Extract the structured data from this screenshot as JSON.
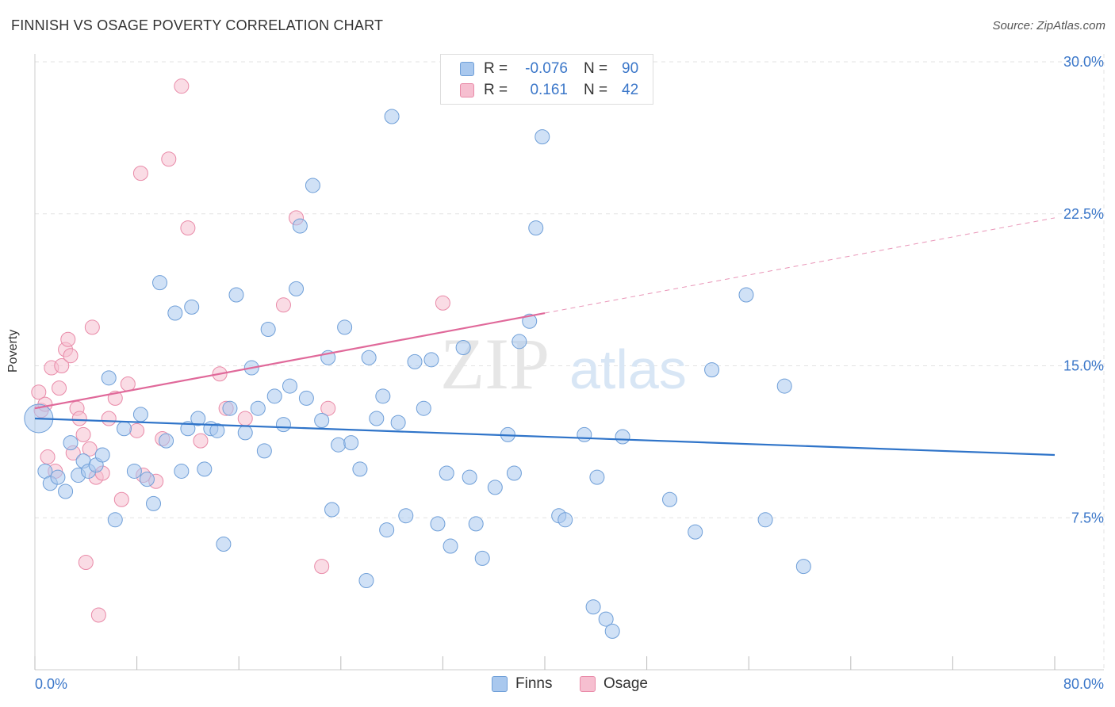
{
  "title": "FINNISH VS OSAGE POVERTY CORRELATION CHART",
  "source": "Source: ZipAtlas.com",
  "watermark": {
    "zip": "ZIP",
    "atlas": "atlas"
  },
  "colors": {
    "finns_fill": "#a9c8ee",
    "finns_stroke": "#6f9fd8",
    "finns_line": "#2f74c9",
    "osage_fill": "#f6bfd0",
    "osage_stroke": "#e98aa8",
    "osage_line": "#e0699a",
    "tick_text": "#3b77c9",
    "grid": "#e3e3e3"
  },
  "legend": {
    "rows": [
      {
        "r_label": "R =",
        "r_value": "-0.076",
        "n_label": "N =",
        "n_value": "90"
      },
      {
        "r_label": "R =",
        "r_value": "0.161",
        "n_label": "N =",
        "n_value": "42"
      }
    ]
  },
  "bottom_legend": [
    "Finns",
    "Osage"
  ],
  "chart_data": {
    "type": "scatter",
    "xlabel": "",
    "ylabel": "Poverty",
    "xlim": [
      0,
      80
    ],
    "ylim": [
      0,
      30
    ],
    "x_tick_labels": [
      "0.0%",
      "80.0%"
    ],
    "y_ticks": [
      7.5,
      15.0,
      22.5,
      30.0
    ],
    "y_tick_labels": [
      "7.5%",
      "15.0%",
      "22.5%",
      "30.0%"
    ],
    "grid": "horizontal dashed",
    "series": [
      {
        "name": "Finns",
        "trend": {
          "x": [
            0,
            80
          ],
          "y": [
            12.4,
            10.6
          ],
          "style": "solid"
        },
        "points": [
          [
            0.3,
            12.4,
            "big"
          ],
          [
            0.8,
            9.8
          ],
          [
            1.2,
            9.2
          ],
          [
            1.8,
            9.5
          ],
          [
            2.4,
            8.8
          ],
          [
            2.8,
            11.2
          ],
          [
            3.4,
            9.6
          ],
          [
            3.8,
            10.3
          ],
          [
            4.2,
            9.8
          ],
          [
            4.8,
            10.1
          ],
          [
            5.3,
            10.6
          ],
          [
            5.8,
            14.4
          ],
          [
            6.3,
            7.4
          ],
          [
            7.0,
            11.9
          ],
          [
            7.8,
            9.8
          ],
          [
            8.3,
            12.6
          ],
          [
            8.8,
            9.4
          ],
          [
            9.3,
            8.2
          ],
          [
            9.8,
            19.1
          ],
          [
            10.3,
            11.3
          ],
          [
            11.0,
            17.6
          ],
          [
            11.5,
            9.8
          ],
          [
            12.0,
            11.9
          ],
          [
            12.3,
            17.9
          ],
          [
            12.8,
            12.4
          ],
          [
            13.3,
            9.9
          ],
          [
            13.8,
            11.9
          ],
          [
            14.3,
            11.8
          ],
          [
            14.8,
            6.2
          ],
          [
            15.3,
            12.9
          ],
          [
            15.8,
            18.5
          ],
          [
            16.5,
            11.7
          ],
          [
            17.0,
            14.9
          ],
          [
            17.5,
            12.9
          ],
          [
            18.0,
            10.8
          ],
          [
            18.3,
            16.8
          ],
          [
            18.8,
            13.5
          ],
          [
            19.5,
            12.1
          ],
          [
            20.0,
            14.0
          ],
          [
            20.5,
            18.8
          ],
          [
            20.8,
            21.9
          ],
          [
            21.3,
            13.4
          ],
          [
            21.8,
            23.9
          ],
          [
            22.5,
            12.3
          ],
          [
            23.0,
            15.4
          ],
          [
            23.3,
            7.9
          ],
          [
            23.8,
            11.1
          ],
          [
            24.3,
            16.9
          ],
          [
            24.8,
            11.2
          ],
          [
            25.5,
            9.9
          ],
          [
            26.0,
            4.4
          ],
          [
            26.2,
            15.4
          ],
          [
            26.8,
            12.4
          ],
          [
            27.3,
            13.5
          ],
          [
            27.6,
            6.9
          ],
          [
            28.0,
            27.3
          ],
          [
            28.5,
            12.2
          ],
          [
            29.1,
            7.6
          ],
          [
            29.8,
            15.2
          ],
          [
            30.5,
            12.9
          ],
          [
            31.1,
            15.3
          ],
          [
            31.6,
            7.2
          ],
          [
            32.3,
            9.7
          ],
          [
            32.6,
            6.1
          ],
          [
            33.6,
            15.9
          ],
          [
            34.1,
            9.5
          ],
          [
            34.6,
            7.2
          ],
          [
            35.1,
            5.5
          ],
          [
            36.1,
            9.0
          ],
          [
            37.1,
            11.6
          ],
          [
            37.6,
            9.7
          ],
          [
            38.0,
            16.2
          ],
          [
            38.8,
            17.2
          ],
          [
            39.3,
            21.8
          ],
          [
            39.8,
            26.3
          ],
          [
            41.1,
            7.6
          ],
          [
            41.6,
            7.4
          ],
          [
            43.1,
            11.6
          ],
          [
            43.8,
            3.1
          ],
          [
            44.1,
            9.5
          ],
          [
            44.8,
            2.5
          ],
          [
            45.3,
            1.9
          ],
          [
            46.1,
            11.5
          ],
          [
            49.8,
            8.4
          ],
          [
            51.8,
            6.8
          ],
          [
            53.1,
            14.8
          ],
          [
            55.8,
            18.5
          ],
          [
            57.3,
            7.4
          ],
          [
            58.8,
            14.0
          ],
          [
            60.3,
            5.1
          ]
        ]
      },
      {
        "name": "Osage",
        "trend": {
          "x": [
            0,
            40
          ],
          "y": [
            12.9,
            17.6
          ],
          "extend_x": 80,
          "extend_y": 22.3,
          "style": "solid then dashed"
        },
        "points": [
          [
            0.3,
            13.7
          ],
          [
            0.5,
            12.8
          ],
          [
            0.8,
            13.1
          ],
          [
            1.0,
            10.5
          ],
          [
            1.3,
            14.9
          ],
          [
            1.6,
            9.8
          ],
          [
            1.9,
            13.9
          ],
          [
            2.1,
            15.0
          ],
          [
            2.4,
            15.8
          ],
          [
            2.6,
            16.3
          ],
          [
            2.8,
            15.5
          ],
          [
            3.0,
            10.7
          ],
          [
            3.3,
            12.9
          ],
          [
            3.5,
            12.4
          ],
          [
            3.8,
            11.6
          ],
          [
            4.0,
            5.3
          ],
          [
            4.3,
            10.9
          ],
          [
            4.5,
            16.9
          ],
          [
            4.8,
            9.5
          ],
          [
            5.0,
            2.7
          ],
          [
            5.3,
            9.7
          ],
          [
            5.8,
            12.4
          ],
          [
            6.3,
            13.4
          ],
          [
            6.8,
            8.4
          ],
          [
            7.3,
            14.1
          ],
          [
            8.0,
            11.8
          ],
          [
            8.3,
            24.5
          ],
          [
            8.5,
            9.6
          ],
          [
            9.5,
            9.3
          ],
          [
            10.0,
            11.4
          ],
          [
            10.5,
            25.2
          ],
          [
            11.5,
            28.8
          ],
          [
            12.0,
            21.8
          ],
          [
            13.0,
            11.3
          ],
          [
            14.5,
            14.6
          ],
          [
            15.0,
            12.9
          ],
          [
            16.5,
            12.4
          ],
          [
            19.5,
            18.0
          ],
          [
            20.5,
            22.3
          ],
          [
            22.5,
            5.1
          ],
          [
            23.0,
            12.9
          ],
          [
            32.0,
            18.1
          ]
        ]
      }
    ]
  }
}
